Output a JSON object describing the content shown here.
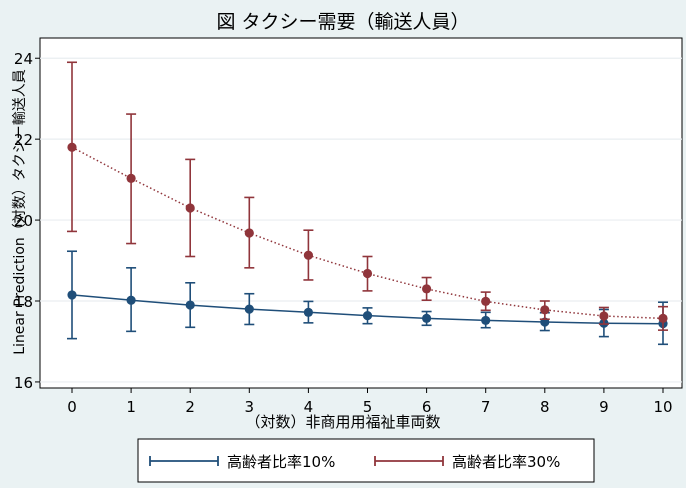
{
  "chart_data": {
    "type": "line",
    "title": "図 タクシー需要（輸送人員）",
    "xlabel": "（対数）非商用用福祉車両数",
    "ylabel": "Linear Prediction（対数）タクシー輸送人員",
    "x": [
      0,
      1,
      2,
      3,
      4,
      5,
      6,
      7,
      8,
      9,
      10
    ],
    "xlim": [
      0,
      10
    ],
    "ylim": [
      15.85,
      24.5
    ],
    "xticks": [
      "0",
      "1",
      "2",
      "3",
      "4",
      "5",
      "6",
      "7",
      "8",
      "9",
      "10"
    ],
    "yticks": [
      "16",
      "18",
      "20",
      "22",
      "24"
    ],
    "grid": "horizontal",
    "legend_position": "bottom",
    "series": [
      {
        "name": "高齢者比率10%",
        "color": "#1f4e79",
        "line_style": "solid",
        "values": [
          18.15,
          18.02,
          17.9,
          17.8,
          17.72,
          17.64,
          17.57,
          17.52,
          17.48,
          17.45,
          17.44
        ],
        "ci_low": [
          17.07,
          17.25,
          17.35,
          17.42,
          17.46,
          17.44,
          17.4,
          17.34,
          17.27,
          17.12,
          16.93
        ],
        "ci_high": [
          19.23,
          18.82,
          18.45,
          18.18,
          17.99,
          17.83,
          17.74,
          17.72,
          17.71,
          17.79,
          17.97
        ]
      },
      {
        "name": "高齢者比率30%",
        "color": "#90353b",
        "line_style": "dotted",
        "values": [
          21.8,
          21.03,
          20.3,
          19.68,
          19.13,
          18.68,
          18.3,
          17.99,
          17.78,
          17.63,
          17.57
        ],
        "ci_low": [
          19.72,
          19.42,
          19.1,
          18.82,
          18.52,
          18.25,
          18.02,
          17.77,
          17.55,
          17.43,
          17.28
        ],
        "ci_high": [
          23.9,
          22.62,
          21.5,
          20.56,
          19.75,
          19.1,
          18.58,
          18.22,
          18.0,
          17.84,
          17.86
        ]
      }
    ]
  }
}
